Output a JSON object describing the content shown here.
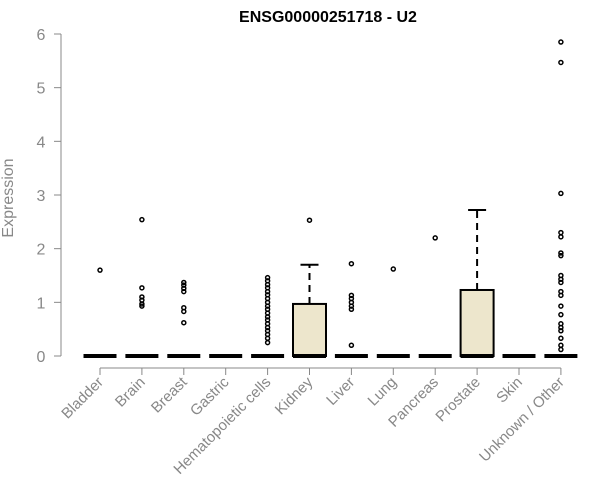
{
  "chart_data": {
    "type": "box",
    "title": "ENSG00000251718 - U2",
    "xlabel": "",
    "ylabel": "Expression",
    "ylim": [
      0,
      6
    ],
    "yticks": [
      0,
      1,
      2,
      3,
      4,
      5,
      6
    ],
    "box_fill": "#ede6cc",
    "categories": [
      "Bladder",
      "Brain",
      "Breast",
      "Gastric",
      "Hematopoietic cells",
      "Kidney",
      "Liver",
      "Lung",
      "Pancreas",
      "Prostate",
      "Skin",
      "Unknown / Other"
    ],
    "boxes": [
      {
        "q1": 0,
        "median": 0,
        "q3": 0,
        "whisker_low": 0,
        "whisker_high": 0,
        "outliers": [
          1.6
        ]
      },
      {
        "q1": 0,
        "median": 0,
        "q3": 0,
        "whisker_low": 0,
        "whisker_high": 0,
        "outliers": [
          2.54,
          1.27,
          1.1,
          1.04,
          0.97,
          0.93
        ]
      },
      {
        "q1": 0,
        "median": 0,
        "q3": 0,
        "whisker_low": 0,
        "whisker_high": 0,
        "outliers": [
          1.37,
          1.32,
          1.26,
          1.2,
          0.9,
          0.83,
          0.62
        ]
      },
      {
        "q1": 0,
        "median": 0,
        "q3": 0,
        "whisker_low": 0,
        "whisker_high": 0,
        "outliers": []
      },
      {
        "q1": 0,
        "median": 0,
        "q3": 0,
        "whisker_low": 0,
        "whisker_high": 0,
        "outliers": [
          1.46,
          1.4,
          1.33,
          1.27,
          1.2,
          1.14,
          1.07,
          1.0,
          0.93,
          0.87,
          0.8,
          0.73,
          0.67,
          0.6,
          0.53,
          0.47,
          0.4,
          0.33,
          0.25
        ]
      },
      {
        "q1": 0,
        "median": 0,
        "q3": 0.97,
        "whisker_low": 0,
        "whisker_high": 1.7,
        "outliers": [
          2.53
        ]
      },
      {
        "q1": 0,
        "median": 0,
        "q3": 0,
        "whisker_low": 0,
        "whisker_high": 0,
        "outliers": [
          1.72,
          1.13,
          1.07,
          1.0,
          0.93,
          0.87,
          0.2
        ]
      },
      {
        "q1": 0,
        "median": 0,
        "q3": 0,
        "whisker_low": 0,
        "whisker_high": 0,
        "outliers": [
          1.62
        ]
      },
      {
        "q1": 0,
        "median": 0,
        "q3": 0,
        "whisker_low": 0,
        "whisker_high": 0,
        "outliers": [
          2.2
        ]
      },
      {
        "q1": 0,
        "median": 0,
        "q3": 1.23,
        "whisker_low": 0,
        "whisker_high": 2.72,
        "outliers": []
      },
      {
        "q1": 0,
        "median": 0,
        "q3": 0,
        "whisker_low": 0,
        "whisker_high": 0,
        "outliers": []
      },
      {
        "q1": 0,
        "median": 0,
        "q3": 0,
        "whisker_low": 0,
        "whisker_high": 0,
        "outliers": [
          5.85,
          5.47,
          3.03,
          2.3,
          2.22,
          1.92,
          1.87,
          1.5,
          1.43,
          1.37,
          1.2,
          1.13,
          0.93,
          0.77,
          0.6,
          0.53,
          0.47,
          0.33,
          0.2,
          0.12
        ]
      }
    ]
  }
}
